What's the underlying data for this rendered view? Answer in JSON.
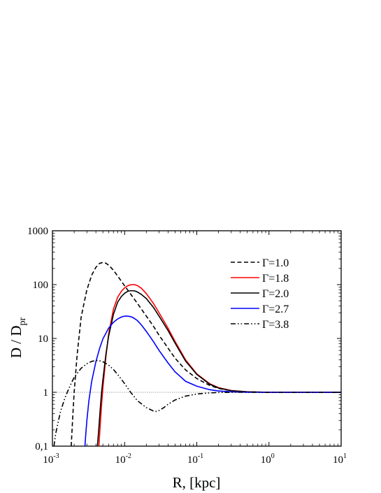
{
  "chart_data": {
    "type": "line",
    "xlabel": "R, [kpc]",
    "ylabel_main": "D / D",
    "ylabel_sub": "pr",
    "xscale": "log",
    "yscale": "log",
    "xlim": [
      0.001,
      10
    ],
    "ylim": [
      0.1,
      1000
    ],
    "x_ticks": [
      {
        "value": 0.001,
        "base": "10",
        "exp": "-3"
      },
      {
        "value": 0.01,
        "base": "10",
        "exp": "-2"
      },
      {
        "value": 0.1,
        "base": "10",
        "exp": "-1"
      },
      {
        "value": 1,
        "base": "10",
        "exp": "0"
      },
      {
        "value": 10,
        "base": "10",
        "exp": "1"
      }
    ],
    "y_ticks": [
      {
        "value": 0.1,
        "label": "0,1"
      },
      {
        "value": 1,
        "label": "1"
      },
      {
        "value": 10,
        "label": "10"
      },
      {
        "value": 100,
        "label": "100"
      },
      {
        "value": 1000,
        "label": "1000"
      }
    ],
    "reference_line": {
      "y": 1,
      "style": "dotted",
      "color": "#888888"
    },
    "legend_position": "top-right",
    "series": [
      {
        "name": "Γ=1.0",
        "color": "#000000",
        "dash": "dashed",
        "x": [
          0.00182,
          0.0019,
          0.002,
          0.0022,
          0.0025,
          0.003,
          0.0035,
          0.004,
          0.0045,
          0.005,
          0.0055,
          0.006,
          0.007,
          0.008,
          0.01,
          0.012,
          0.015,
          0.02,
          0.025,
          0.03,
          0.04,
          0.05,
          0.07,
          0.1,
          0.15,
          0.2,
          0.3,
          0.5,
          0.7,
          1,
          2,
          5,
          10
        ],
        "y": [
          0.1,
          0.3,
          1.0,
          5.0,
          25,
          80,
          150,
          210,
          248,
          258,
          250,
          230,
          185,
          145,
          95,
          68,
          45,
          26,
          17,
          11.5,
          6.6,
          4.3,
          2.6,
          1.8,
          1.35,
          1.18,
          1.07,
          1.02,
          1.01,
          1.0,
          1.0,
          1.0,
          1.0
        ],
        "legend_label": "Γ=1.0"
      },
      {
        "name": "Γ=1.8",
        "color": "#ff0000",
        "dash": "solid",
        "x": [
          0.0044,
          0.0046,
          0.0048,
          0.005,
          0.0055,
          0.006,
          0.007,
          0.008,
          0.009,
          0.01,
          0.011,
          0.012,
          0.013,
          0.014,
          0.015,
          0.017,
          0.02,
          0.025,
          0.03,
          0.04,
          0.05,
          0.07,
          0.1,
          0.15,
          0.2,
          0.3,
          0.5,
          0.7,
          1,
          2,
          5,
          10
        ],
        "y": [
          0.1,
          0.25,
          0.6,
          1.2,
          4.5,
          12,
          35,
          58,
          75,
          87,
          95,
          99,
          100,
          99,
          96,
          86,
          68,
          45,
          30,
          15.5,
          8.8,
          4.0,
          2.2,
          1.45,
          1.22,
          1.08,
          1.02,
          1.01,
          1.0,
          1.0,
          1.0,
          1.0
        ],
        "legend_label": "Γ=1.8"
      },
      {
        "name": "Γ=2.0",
        "color": "#000000",
        "dash": "solid",
        "x": [
          0.0042,
          0.0044,
          0.0046,
          0.0048,
          0.005,
          0.0055,
          0.006,
          0.007,
          0.008,
          0.009,
          0.01,
          0.011,
          0.012,
          0.013,
          0.014,
          0.015,
          0.017,
          0.02,
          0.025,
          0.03,
          0.04,
          0.05,
          0.07,
          0.1,
          0.15,
          0.2,
          0.3,
          0.5,
          0.7,
          1,
          2,
          5,
          10
        ],
        "y": [
          0.1,
          0.22,
          0.5,
          1.0,
          1.7,
          5.0,
          11,
          28,
          47,
          60,
          69,
          75,
          77,
          77,
          76,
          73,
          66,
          55,
          38,
          26,
          14,
          8.2,
          3.8,
          2.15,
          1.42,
          1.2,
          1.07,
          1.02,
          1.01,
          1.0,
          1.0,
          1.0,
          1.0
        ],
        "legend_label": "Γ=2.0"
      },
      {
        "name": "Γ=2.7",
        "color": "#0000ff",
        "dash": "solid",
        "x": [
          0.00282,
          0.0029,
          0.003,
          0.0032,
          0.0035,
          0.004,
          0.0045,
          0.005,
          0.006,
          0.007,
          0.008,
          0.009,
          0.01,
          0.011,
          0.012,
          0.013,
          0.014,
          0.015,
          0.017,
          0.02,
          0.025,
          0.03,
          0.04,
          0.05,
          0.07,
          0.1,
          0.15,
          0.2,
          0.3,
          0.5,
          1,
          2,
          5,
          10
        ],
        "y": [
          0.1,
          0.17,
          0.3,
          0.7,
          1.6,
          3.7,
          6.5,
          9.8,
          15.5,
          20,
          23,
          25,
          26,
          26,
          25.5,
          24.5,
          23,
          21.5,
          18,
          13.5,
          8.8,
          6.0,
          3.5,
          2.4,
          1.6,
          1.3,
          1.12,
          1.06,
          1.02,
          1.0,
          1.0,
          1.0,
          1.0,
          1.0
        ],
        "legend_label": "Γ=2.7"
      },
      {
        "name": "Γ=3.8",
        "color": "#000000",
        "dash": "dash-dot-dot",
        "x": [
          0.00105,
          0.0011,
          0.0012,
          0.0013,
          0.0015,
          0.0017,
          0.002,
          0.0025,
          0.003,
          0.0035,
          0.004,
          0.0045,
          0.005,
          0.006,
          0.007,
          0.008,
          0.01,
          0.012,
          0.015,
          0.02,
          0.025,
          0.028,
          0.03,
          0.035,
          0.04,
          0.05,
          0.07,
          0.1,
          0.15,
          0.2,
          0.3,
          0.5,
          1,
          2,
          5,
          10
        ],
        "y": [
          0.1,
          0.16,
          0.28,
          0.45,
          0.8,
          1.2,
          1.9,
          2.8,
          3.4,
          3.75,
          3.9,
          3.85,
          3.7,
          3.2,
          2.65,
          2.15,
          1.45,
          1.02,
          0.7,
          0.52,
          0.45,
          0.44,
          0.46,
          0.52,
          0.6,
          0.72,
          0.85,
          0.93,
          0.975,
          0.99,
          1.0,
          1.0,
          1.0,
          1.0,
          1.0,
          1.0
        ],
        "legend_label": "Γ=3.8"
      }
    ]
  }
}
